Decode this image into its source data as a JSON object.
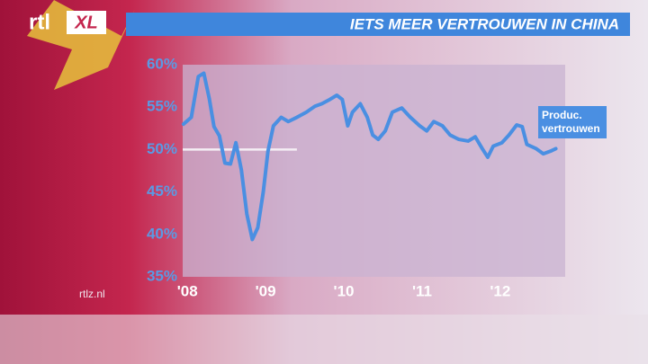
{
  "chart_data": {
    "type": "line",
    "title": "IETS MEER VERTROUWEN IN CHINA",
    "logo": [
      "rtl",
      "XL"
    ],
    "source": "rtlz.nl",
    "xlim": [
      2007.94,
      2012.83
    ],
    "ylim": [
      35,
      60
    ],
    "xticks": [
      {
        "value": 2008,
        "label": "'08"
      },
      {
        "value": 2009,
        "label": "'09"
      },
      {
        "value": 2010,
        "label": "'10"
      },
      {
        "value": 2011,
        "label": "'11"
      },
      {
        "value": 2012,
        "label": "'12"
      }
    ],
    "yticks": [
      {
        "value": 35,
        "label": "35%"
      },
      {
        "value": 40,
        "label": "40%"
      },
      {
        "value": 45,
        "label": "45%"
      },
      {
        "value": 50,
        "label": "50%"
      },
      {
        "value": 55,
        "label": "55%"
      },
      {
        "value": 60,
        "label": "60%"
      }
    ],
    "reference_line": {
      "value": 50,
      "x": [
        2007.94,
        2009.4
      ],
      "color": "#f4eef4"
    },
    "x": [
      2007.95,
      2008.05,
      2008.14,
      2008.21,
      2008.28,
      2008.34,
      2008.41,
      2008.48,
      2008.55,
      2008.62,
      2008.69,
      2008.76,
      2008.83,
      2008.9,
      2008.97,
      2009.03,
      2009.1,
      2009.2,
      2009.29,
      2009.4,
      2009.52,
      2009.63,
      2009.72,
      2009.82,
      2009.91,
      2009.98,
      2010.05,
      2010.11,
      2010.21,
      2010.3,
      2010.37,
      2010.44,
      2010.53,
      2010.62,
      2010.74,
      2010.85,
      2010.97,
      2011.06,
      2011.15,
      2011.26,
      2011.36,
      2011.47,
      2011.59,
      2011.68,
      2011.77,
      2011.84,
      2011.91,
      2012.02,
      2012.11,
      2012.21,
      2012.28,
      2012.34,
      2012.46,
      2012.55,
      2012.64,
      2012.71
    ],
    "series": [
      {
        "name": "Produc. vertrouwen",
        "color": "#4a8fe2",
        "values": [
          53.0,
          53.8,
          58.6,
          59.0,
          56.0,
          52.7,
          51.6,
          48.4,
          48.3,
          50.8,
          47.6,
          42.4,
          39.4,
          40.8,
          45.0,
          49.8,
          52.8,
          53.8,
          53.3,
          53.8,
          54.4,
          55.1,
          55.4,
          55.9,
          56.4,
          55.9,
          52.8,
          54.4,
          55.4,
          53.8,
          51.7,
          51.2,
          52.2,
          54.4,
          54.9,
          53.8,
          52.8,
          52.2,
          53.3,
          52.8,
          51.7,
          51.2,
          51.0,
          51.5,
          50.1,
          49.1,
          50.4,
          50.8,
          51.7,
          52.9,
          52.7,
          50.6,
          50.1,
          49.5,
          49.8,
          50.1
        ]
      }
    ]
  }
}
